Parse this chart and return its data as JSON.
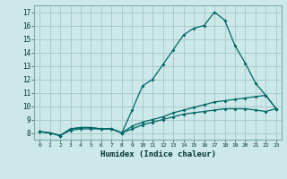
{
  "xlabel": "Humidex (Indice chaleur)",
  "bg_color": "#cce8e8",
  "grid_color": "#aacccc",
  "line_color": "#006666",
  "xlim": [
    -0.5,
    23.5
  ],
  "ylim": [
    7.5,
    17.5
  ],
  "xticks": [
    0,
    1,
    2,
    3,
    4,
    5,
    6,
    7,
    8,
    9,
    10,
    11,
    12,
    13,
    14,
    15,
    16,
    17,
    18,
    19,
    20,
    21,
    22,
    23
  ],
  "yticks": [
    8,
    9,
    10,
    11,
    12,
    13,
    14,
    15,
    16,
    17
  ],
  "series1_x": [
    0,
    1,
    2,
    3,
    4,
    5,
    6,
    7,
    8,
    9,
    10,
    11,
    12,
    13,
    14,
    15,
    16,
    17,
    18,
    19,
    20,
    21,
    22,
    23
  ],
  "series1_y": [
    8.1,
    8.0,
    7.8,
    8.3,
    8.4,
    8.4,
    8.3,
    8.3,
    8.0,
    9.7,
    11.5,
    12.0,
    13.1,
    14.2,
    15.3,
    15.8,
    16.0,
    17.0,
    16.4,
    14.5,
    13.2,
    11.7,
    10.8,
    9.8
  ],
  "series2_x": [
    0,
    1,
    2,
    3,
    4,
    5,
    6,
    7,
    8,
    9,
    10,
    11,
    12,
    13,
    14,
    15,
    16,
    17,
    18,
    19,
    20,
    21,
    22,
    23
  ],
  "series2_y": [
    8.1,
    8.0,
    7.8,
    8.3,
    8.4,
    8.4,
    8.3,
    8.3,
    8.0,
    8.5,
    8.8,
    9.0,
    9.2,
    9.5,
    9.7,
    9.9,
    10.1,
    10.3,
    10.4,
    10.5,
    10.6,
    10.7,
    10.8,
    9.8
  ],
  "series3_x": [
    0,
    1,
    2,
    3,
    4,
    5,
    6,
    7,
    8,
    9,
    10,
    11,
    12,
    13,
    14,
    15,
    16,
    17,
    18,
    19,
    20,
    21,
    22,
    23
  ],
  "series3_y": [
    8.1,
    8.0,
    7.8,
    8.2,
    8.3,
    8.3,
    8.3,
    8.3,
    8.0,
    8.3,
    8.6,
    8.8,
    9.0,
    9.2,
    9.4,
    9.5,
    9.6,
    9.7,
    9.8,
    9.8,
    9.8,
    9.7,
    9.6,
    9.8
  ]
}
